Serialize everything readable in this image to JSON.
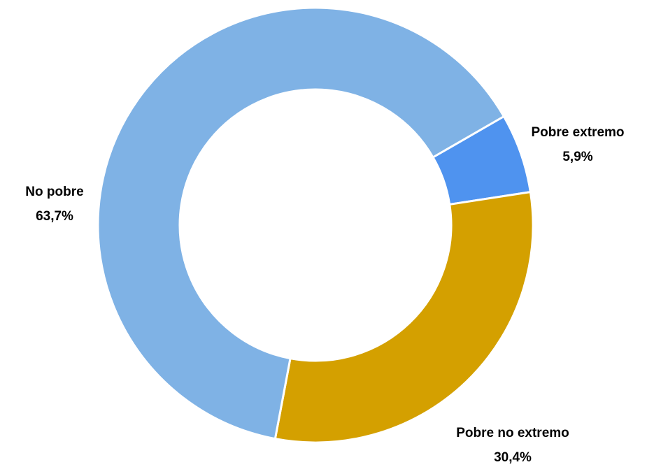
{
  "chart_data": {
    "type": "donut",
    "categories": [
      "Pobre extremo",
      "Pobre no extremo",
      "No pobre"
    ],
    "values": [
      5.9,
      30.4,
      63.7
    ],
    "value_labels": [
      "5,9%",
      "30,4%",
      "63,7%"
    ],
    "colors": [
      "#4f93ef",
      "#d4a000",
      "#7fb2e5"
    ]
  }
}
